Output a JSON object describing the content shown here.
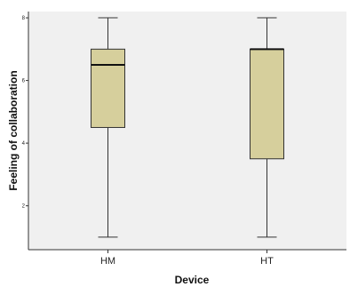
{
  "chart_data": {
    "type": "boxplot",
    "xlabel": "Device",
    "ylabel": "Feeling of collaboration",
    "categories": [
      "HM",
      "HT"
    ],
    "boxes": [
      {
        "name": "HM",
        "min": 1,
        "q1": 4.5,
        "median": 6.5,
        "q3": 7,
        "max": 8
      },
      {
        "name": "HT",
        "min": 1,
        "q1": 3.5,
        "median": 7,
        "q3": 7,
        "max": 8
      }
    ],
    "ylim": [
      0.6,
      8.2
    ],
    "yticks": [
      2,
      4,
      6,
      8
    ],
    "grid": false,
    "colors": {
      "plot_background": "#f0f0f0",
      "box_fill": "#d6cf9c",
      "box_stroke": "#333333",
      "axis": "#333333",
      "median": "#111111"
    }
  }
}
